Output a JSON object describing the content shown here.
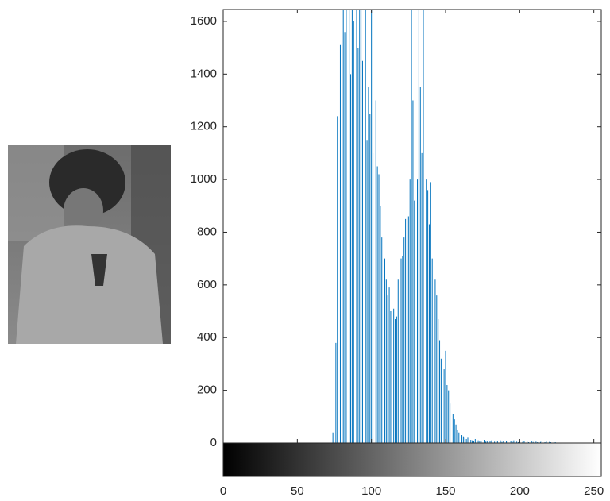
{
  "chart_data": {
    "type": "stem",
    "color": "#0072bd",
    "x": [
      0,
      1,
      2,
      3,
      4,
      5,
      6,
      7,
      8,
      9,
      10,
      11,
      12,
      13,
      14,
      15,
      16,
      17,
      18,
      19,
      20,
      21,
      22,
      23,
      24,
      25,
      26,
      27,
      28,
      29,
      30,
      31,
      32,
      33,
      34,
      35,
      36,
      37,
      38,
      39,
      40,
      41,
      42,
      43,
      44,
      45,
      46,
      47,
      48,
      49,
      50,
      51,
      52,
      53,
      54,
      55,
      56,
      57,
      58,
      59,
      60,
      61,
      62,
      63,
      64,
      65,
      66,
      67,
      68,
      69,
      70,
      71,
      72,
      73,
      74,
      75,
      76,
      77,
      78,
      79,
      80,
      81,
      82,
      83,
      84,
      85,
      86,
      87,
      88,
      89,
      90,
      91,
      92,
      93,
      94,
      95,
      96,
      97,
      98,
      99,
      100,
      101,
      102,
      103,
      104,
      105,
      106,
      107,
      108,
      109,
      110,
      111,
      112,
      113,
      114,
      115,
      116,
      117,
      118,
      119,
      120,
      121,
      122,
      123,
      124,
      125,
      126,
      127,
      128,
      129,
      130,
      131,
      132,
      133,
      134,
      135,
      136,
      137,
      138,
      139,
      140,
      141,
      142,
      143,
      144,
      145,
      146,
      147,
      148,
      149,
      150,
      151,
      152,
      153,
      154,
      155,
      156,
      157,
      158,
      159,
      160,
      161,
      162,
      163,
      164,
      165,
      166,
      167,
      168,
      169,
      170,
      171,
      172,
      173,
      174,
      175,
      176,
      177,
      178,
      179,
      180,
      181,
      182,
      183,
      184,
      185,
      186,
      187,
      188,
      189,
      190,
      191,
      192,
      193,
      194,
      195,
      196,
      197,
      198,
      199,
      200,
      201,
      202,
      203,
      204,
      205,
      206,
      207,
      208,
      209,
      210,
      211,
      212,
      213,
      214,
      215,
      216,
      217,
      218,
      219,
      220,
      221,
      222,
      223,
      224,
      225,
      226,
      227,
      228,
      229,
      230,
      231,
      232,
      233,
      234,
      235,
      236,
      237,
      238,
      239,
      240,
      241,
      242,
      243,
      244,
      245,
      246,
      247,
      248,
      249,
      250,
      251,
      252,
      253,
      254,
      255
    ],
    "values": [
      0,
      0,
      0,
      0,
      0,
      0,
      0,
      0,
      0,
      0,
      0,
      0,
      0,
      0,
      0,
      0,
      0,
      0,
      0,
      0,
      0,
      0,
      0,
      0,
      0,
      0,
      0,
      0,
      0,
      0,
      0,
      0,
      0,
      0,
      0,
      0,
      0,
      0,
      0,
      0,
      0,
      0,
      0,
      0,
      0,
      0,
      0,
      0,
      0,
      0,
      0,
      0,
      0,
      0,
      0,
      0,
      0,
      0,
      0,
      0,
      0,
      0,
      0,
      0,
      0,
      0,
      0,
      0,
      0,
      0,
      0,
      0,
      0,
      0,
      40,
      0,
      380,
      1240,
      0,
      1510,
      0,
      1800,
      1560,
      1900,
      0,
      1700,
      1400,
      1950,
      1600,
      0,
      1800,
      1500,
      1700,
      2000,
      1450,
      0,
      1700,
      1150,
      1350,
      1250,
      1900,
      1100,
      0,
      1300,
      1050,
      1020,
      900,
      780,
      0,
      700,
      620,
      560,
      590,
      500,
      0,
      510,
      470,
      480,
      620,
      0,
      700,
      710,
      780,
      850,
      0,
      860,
      1000,
      1900,
      1300,
      920,
      0,
      1000,
      1900,
      1350,
      1100,
      1900,
      0,
      1000,
      960,
      830,
      990,
      700,
      0,
      620,
      560,
      470,
      390,
      320,
      0,
      280,
      350,
      220,
      200,
      150,
      0,
      110,
      90,
      70,
      50,
      40,
      0,
      30,
      25,
      20,
      15,
      20,
      0,
      12,
      10,
      8,
      15,
      0,
      10,
      8,
      6,
      0,
      12,
      5,
      8,
      0,
      6,
      10,
      0,
      5,
      8,
      6,
      0,
      10,
      4,
      6,
      0,
      8,
      5,
      0,
      6,
      4,
      10,
      0,
      5,
      3,
      6,
      0,
      4,
      8,
      0,
      5,
      3,
      0,
      6,
      4,
      0,
      5,
      3,
      0,
      4,
      8,
      0,
      3,
      5,
      0,
      4,
      3,
      0,
      2,
      3,
      0,
      0,
      0,
      0,
      0,
      0,
      0,
      0,
      0,
      0,
      0,
      0,
      0,
      0,
      0,
      0,
      0,
      0,
      0,
      0,
      0,
      0,
      0,
      0,
      0,
      0,
      0,
      0,
      0,
      0,
      0
    ],
    "xlim": [
      0,
      255
    ],
    "xticks": [
      0,
      50,
      100,
      150,
      200,
      250
    ],
    "ylim": [
      0,
      1645
    ],
    "yticks": [
      0,
      200,
      400,
      600,
      800,
      1000,
      1200,
      1400,
      1600
    ]
  }
}
